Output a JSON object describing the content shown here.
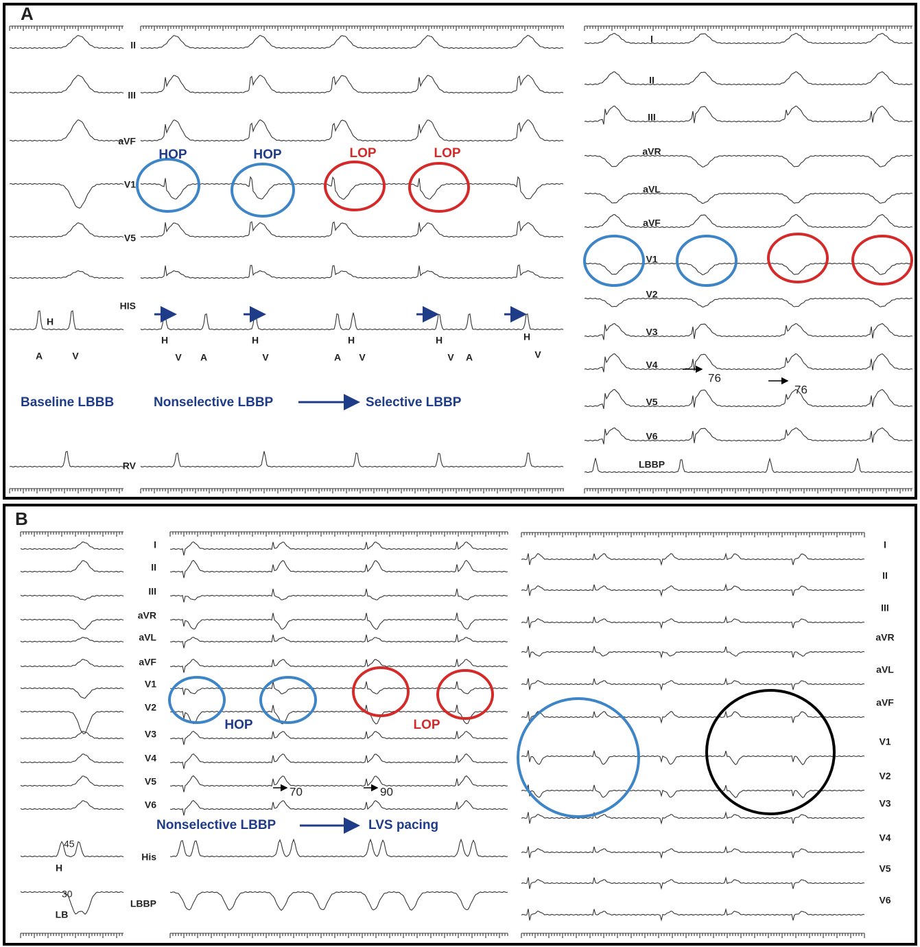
{
  "panel_a": {
    "label": "A",
    "left_leads": [
      "II",
      "III",
      "aVF",
      "V1",
      "V5",
      "HIS",
      "RV"
    ],
    "hop": [
      "HOP",
      "HOP"
    ],
    "lop": [
      "LOP",
      "LOP"
    ],
    "left_markers": [
      "H",
      "A",
      "V"
    ],
    "middle_markers": [
      "H",
      "V",
      "A",
      "H",
      "V",
      "A",
      "H",
      "V",
      "H",
      "V",
      "A",
      "H",
      "V"
    ],
    "captions": [
      "Baseline LBBB",
      "Nonselective LBBP",
      "Selective LBBP"
    ],
    "right_leads": [
      "I",
      "II",
      "III",
      "aVR",
      "aVL",
      "aVF",
      "V1",
      "V2",
      "V3",
      "V4",
      "V5",
      "V6",
      "LBBP"
    ],
    "intervals": [
      76,
      76
    ]
  },
  "panel_b": {
    "label": "B",
    "middle_leads": [
      "I",
      "II",
      "III",
      "aVR",
      "aVL",
      "aVF",
      "V1",
      "V2",
      "V3",
      "V4",
      "V5",
      "V6",
      "His",
      "LBBP"
    ],
    "hop": "HOP",
    "lop": "LOP",
    "intervals": [
      70,
      90
    ],
    "his_intervals": [
      45,
      30
    ],
    "his_markers": [
      "H",
      "LB"
    ],
    "captions": [
      "Nonselective LBBP",
      "LVS pacing"
    ],
    "right_leads": [
      "I",
      "II",
      "III",
      "aVR",
      "aVL",
      "aVF",
      "V1",
      "V2",
      "V3",
      "V4",
      "V5",
      "V6"
    ]
  }
}
